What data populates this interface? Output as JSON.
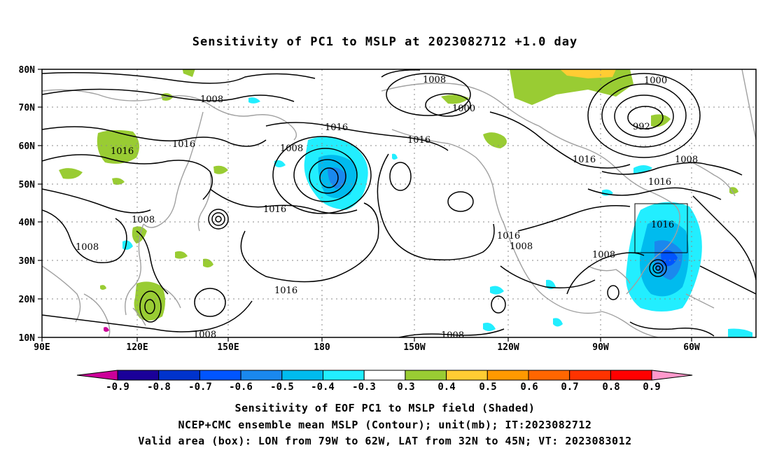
{
  "title": "Sensitivity of PC1 to MSLP at 2023082712 +1.0 day",
  "map": {
    "lat_labels": [
      "80N",
      "70N",
      "60N",
      "50N",
      "40N",
      "30N",
      "20N",
      "10N"
    ],
    "lon_labels": [
      "90E",
      "120E",
      "150E",
      "180",
      "150W",
      "120W",
      "90W",
      "60W"
    ],
    "contour_labels": [
      "1008",
      "1016",
      "1008",
      "1016",
      "1008",
      "1016",
      "1008",
      "1008",
      "1016",
      "1000",
      "1000",
      "992",
      "1016",
      "1008",
      "1016",
      "1016",
      "1016",
      "1008",
      "1008",
      "1016",
      "1008",
      "1008"
    ],
    "box_label": "1016"
  },
  "colorbar": {
    "labels": [
      "-0.9",
      "-0.8",
      "-0.7",
      "-0.6",
      "-0.5",
      "-0.4",
      "-0.3",
      "0.3",
      "0.4",
      "0.5",
      "0.6",
      "0.7",
      "0.8",
      "0.9"
    ],
    "colors": [
      "#1a0099",
      "#0033cc",
      "#0055ff",
      "#1a88ee",
      "#00bbee",
      "#22eeff",
      "#ffffff",
      "#99cc33",
      "#ffcc33",
      "#ff9900",
      "#ff6600",
      "#ff3300",
      "#ff0000"
    ],
    "low_extend_color": "#cc0099",
    "high_extend_color": "#ff99cc"
  },
  "captions": [
    "Sensitivity of EOF PC1 to MSLP field (Shaded)",
    "NCEP+CMC ensemble mean MSLP (Contour); unit(mb); IT:2023082712",
    "Valid area (box): LON from 79W to 62W, LAT from 32N to 45N; VT: 2023083012"
  ]
}
